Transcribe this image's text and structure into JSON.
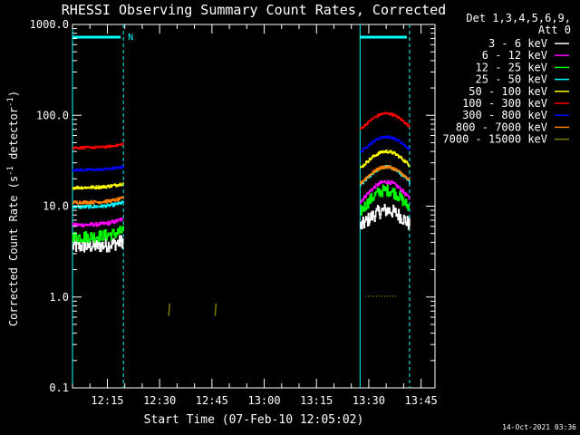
{
  "chart_data": {
    "type": "line",
    "title": "RHESSI Observing Summary Count Rates, Corrected",
    "xlabel": "Start Time (07-Feb-10 12:05:02)",
    "ylabel": "Corrected Count Rate (s",
    "ylabel_sup": "-1",
    "ylabel_tail": " detector",
    "ylabel_tail_sup": "-1",
    "ylabel_close": ")",
    "yscale": "log",
    "ylim": [
      0.1,
      1000
    ],
    "y_ticks": [
      {
        "value": 1000,
        "label": "1000.0"
      },
      {
        "value": 100,
        "label": "100.0"
      },
      {
        "value": 10,
        "label": "10.0"
      },
      {
        "value": 1,
        "label": "1.0"
      },
      {
        "value": 0.1,
        "label": "0.1"
      }
    ],
    "xlim_minutes": [
      0,
      104
    ],
    "x_ticks": [
      {
        "minute": 10,
        "label": "12:15"
      },
      {
        "minute": 25,
        "label": "12:30"
      },
      {
        "minute": 40,
        "label": "12:45"
      },
      {
        "minute": 55,
        "label": "13:00"
      },
      {
        "minute": 70,
        "label": "13:15"
      },
      {
        "minute": 85,
        "label": "13:30"
      },
      {
        "minute": 100,
        "label": "13:45"
      }
    ],
    "night_marker": "N",
    "day_intervals_minutes": [
      [
        0,
        14.6
      ],
      [
        82.5,
        96.7
      ]
    ],
    "legend": {
      "header_line1": "Det 1,3,4,5,6,9,",
      "header_line2": "Att 0",
      "placement": "right"
    },
    "series": [
      {
        "name": "3 - 6 keV",
        "color": "#ffffff",
        "base": 3.6,
        "peak1": 8.0,
        "peak2": 9.0,
        "noise": 0.18
      },
      {
        "name": "6 - 12 keV",
        "color": "#ff00ff",
        "base": 6.2,
        "peak1": 15.5,
        "peak2": 18.5,
        "noise": 0.05
      },
      {
        "name": "12 - 25 keV",
        "color": "#00ff00",
        "base": 4.6,
        "peak1": 11.0,
        "peak2": 15.0,
        "noise": 0.15
      },
      {
        "name": "25 - 50 keV",
        "color": "#00ffff",
        "base": 9.8,
        "peak1": 19.0,
        "peak2": 27.0,
        "noise": 0.04
      },
      {
        "name": "50 - 100 keV",
        "color": "#ffff00",
        "base": 16.0,
        "peak1": 30.0,
        "peak2": 40.0,
        "noise": 0.04
      },
      {
        "name": "100 - 300 keV",
        "color": "#ff0000",
        "base": 44.0,
        "peak1": 76.0,
        "peak2": 105.0,
        "noise": 0.03
      },
      {
        "name": "300 - 800 keV",
        "color": "#0000ff",
        "base": 25.0,
        "peak1": 41.0,
        "peak2": 58.0,
        "noise": 0.03
      },
      {
        "name": "800 - 7000 keV",
        "color": "#ff8000",
        "base": 11.0,
        "peak1": 20.0,
        "peak2": 27.0,
        "noise": 0.04
      },
      {
        "name": "7000 - 15000 keV",
        "color": "#808000",
        "base": 0.0,
        "peak1": 0.0,
        "peak2": 0.0,
        "noise": 0.0,
        "segments": [
          {
            "x0": 27.6,
            "x1": 27.9,
            "y0": 0.62,
            "y1": 0.85
          },
          {
            "x0": 40.9,
            "x1": 41.2,
            "y0": 0.62,
            "y1": 0.85
          },
          {
            "x0": 84.0,
            "x1": 93.0,
            "y0": 1.02,
            "y1": 1.02
          }
        ]
      }
    ],
    "timestamp": "14-Oct-2021 03:36"
  }
}
